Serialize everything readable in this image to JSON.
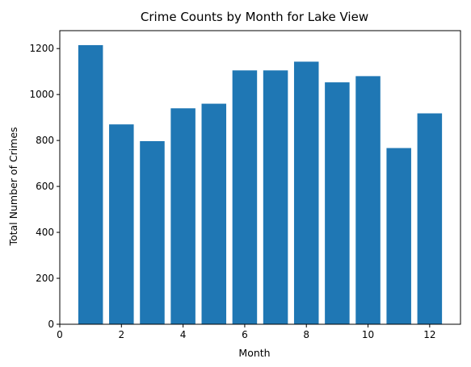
{
  "chart_data": {
    "type": "bar",
    "title": "Crime Counts by Month for Lake View",
    "xlabel": "Month",
    "ylabel": "Total Number of Crimes",
    "categories": [
      1,
      2,
      3,
      4,
      5,
      6,
      7,
      8,
      9,
      10,
      11,
      12
    ],
    "values": [
      1215,
      870,
      797,
      940,
      960,
      1105,
      1105,
      1143,
      1053,
      1080,
      767,
      918
    ],
    "xlim": [
      0,
      13
    ],
    "ylim": [
      0,
      1278
    ],
    "x_ticks": [
      "0",
      "2",
      "4",
      "6",
      "8",
      "10",
      "12"
    ],
    "y_ticks": [
      "0",
      "200",
      "400",
      "600",
      "800",
      "1000",
      "1200"
    ],
    "bar_color": "#1f77b4",
    "grid": false,
    "legend": "none"
  }
}
